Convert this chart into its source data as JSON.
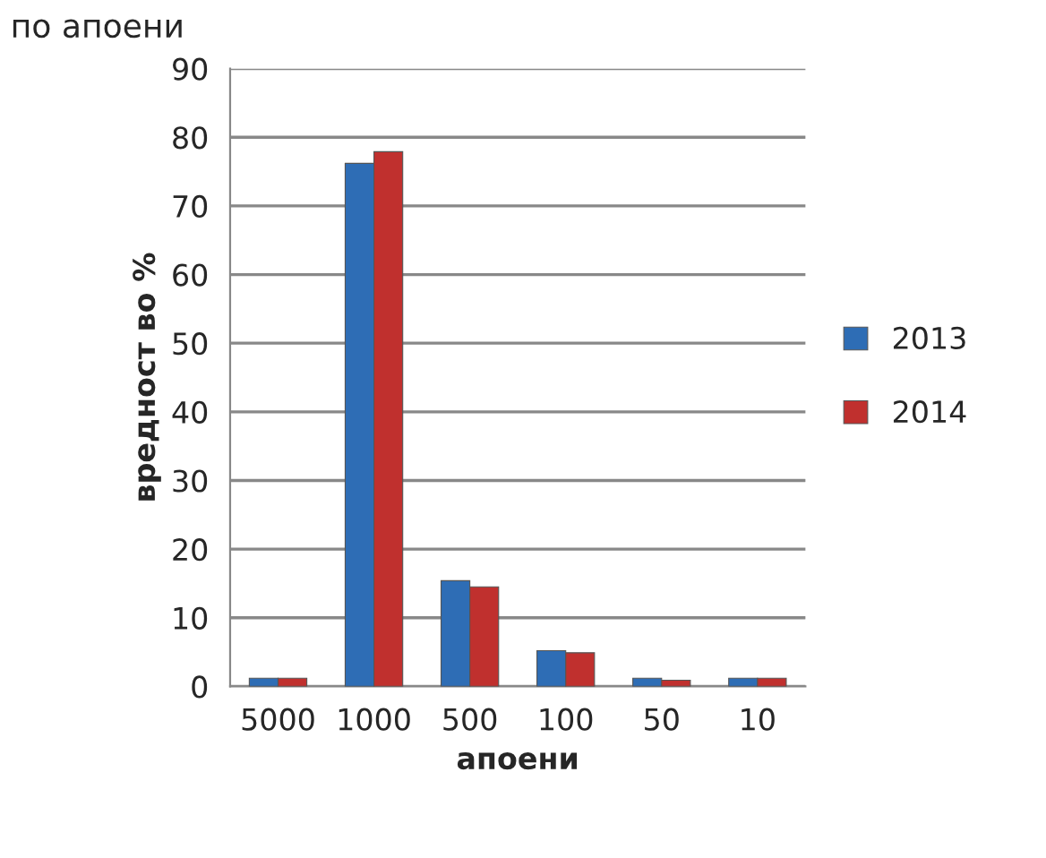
{
  "chart_data": {
    "type": "bar",
    "title": "по апоени",
    "xlabel": "апоени",
    "ylabel": "вредност во %",
    "categories": [
      "5000",
      "1000",
      "500",
      "100",
      "50",
      "10"
    ],
    "series": [
      {
        "name": "2013",
        "color": "#2e6db5",
        "values": [
          1.2,
          76.2,
          15.4,
          5.2,
          1.2,
          1.2
        ]
      },
      {
        "name": "2014",
        "color": "#c0302e",
        "values": [
          1.2,
          77.9,
          14.5,
          4.9,
          0.9,
          1.2
        ]
      }
    ],
    "ylim": [
      0,
      90
    ],
    "yticks": [
      0,
      10,
      20,
      30,
      40,
      50,
      60,
      70,
      80,
      90
    ],
    "grid": "y",
    "legend": "right"
  }
}
